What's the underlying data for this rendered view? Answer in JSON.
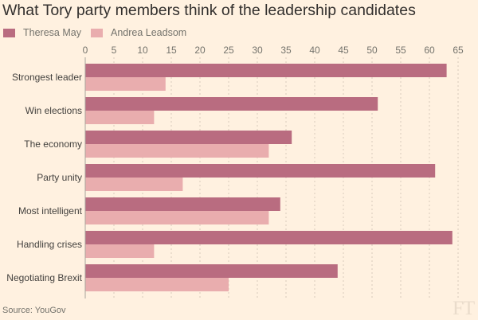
{
  "chart_data": {
    "type": "bar",
    "orientation": "horizontal",
    "title": "What Tory party members think of the leadership candidates",
    "categories": [
      "Strongest leader",
      "Win elections",
      "The economy",
      "Party unity",
      "Most intelligent",
      "Handling crises",
      "Negotiating Brexit"
    ],
    "series": [
      {
        "name": "Theresa May",
        "color": "#b96c80",
        "values": [
          63,
          51,
          36,
          61,
          34,
          64,
          44
        ]
      },
      {
        "name": "Andrea Leadsom",
        "color": "#e9adae",
        "values": [
          14,
          12,
          32,
          17,
          32,
          12,
          25
        ]
      }
    ],
    "xlim": [
      0,
      65
    ],
    "xticks": [
      "0",
      "5",
      "10",
      "15",
      "20",
      "25",
      "30",
      "35",
      "40",
      "45",
      "50",
      "55",
      "60",
      "65"
    ],
    "grid": true,
    "legend": "top-left",
    "source": "Source: YouGov"
  },
  "logo": "FT"
}
